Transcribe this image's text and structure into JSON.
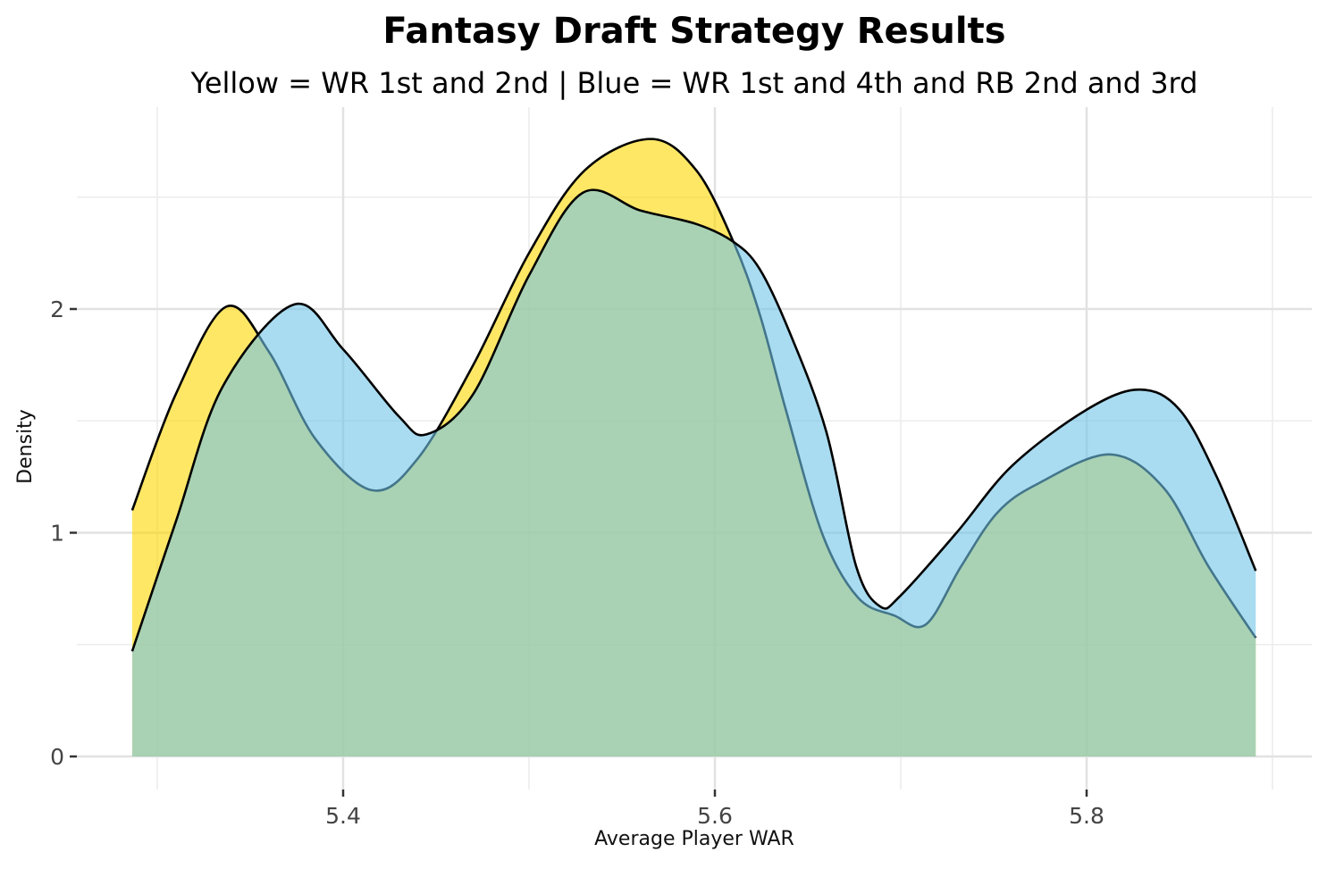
{
  "chart_data": {
    "type": "area",
    "title": "Fantasy Draft Strategy Results",
    "subtitle": "Yellow = WR 1st and 2nd | Blue = WR 1st and 4th and RB 2nd and 3rd",
    "xlabel": "Average Player WAR",
    "ylabel": "Density",
    "xlim": [
      5.2525,
      5.9225
    ],
    "ylim": [
      -0.1,
      2.9
    ],
    "x_ticks": [
      5.4,
      5.6,
      5.8
    ],
    "x_tick_labels": [
      "5.4",
      "5.6",
      "5.8"
    ],
    "y_ticks": [
      0,
      1,
      2
    ],
    "y_tick_labels": [
      "0",
      "1",
      "2"
    ],
    "grid": true,
    "legend": "none",
    "series": [
      {
        "color": "#FFD700",
        "x": [
          5.2865,
          5.31,
          5.337,
          5.36,
          5.385,
          5.4155,
          5.44,
          5.47,
          5.5,
          5.53,
          5.5655,
          5.59,
          5.61,
          5.624,
          5.6385,
          5.658,
          5.677,
          5.6965,
          5.7135,
          5.7325,
          5.752,
          5.774,
          5.8125,
          5.8415,
          5.8655,
          5.891
        ],
        "y": [
          1.1,
          1.62,
          2.01,
          1.81,
          1.42,
          1.19,
          1.33,
          1.75,
          2.25,
          2.62,
          2.76,
          2.62,
          2.3,
          1.98,
          1.54,
          0.99,
          0.71,
          0.63,
          0.59,
          0.85,
          1.09,
          1.22,
          1.35,
          1.2,
          0.85,
          0.53
        ]
      },
      {
        "color": "#6FC4E8",
        "x": [
          5.2865,
          5.31,
          5.335,
          5.3735,
          5.4,
          5.43,
          5.445,
          5.47,
          5.5,
          5.529,
          5.56,
          5.59,
          5.61,
          5.624,
          5.64,
          5.66,
          5.676,
          5.689,
          5.7,
          5.73,
          5.76,
          5.8,
          5.8285,
          5.85,
          5.87,
          5.891
        ],
        "y": [
          0.47,
          1.05,
          1.65,
          2.02,
          1.82,
          1.52,
          1.44,
          1.62,
          2.15,
          2.52,
          2.44,
          2.38,
          2.3,
          2.18,
          1.9,
          1.45,
          0.85,
          0.67,
          0.72,
          1.0,
          1.3,
          1.55,
          1.64,
          1.55,
          1.25,
          0.83
        ]
      }
    ]
  }
}
